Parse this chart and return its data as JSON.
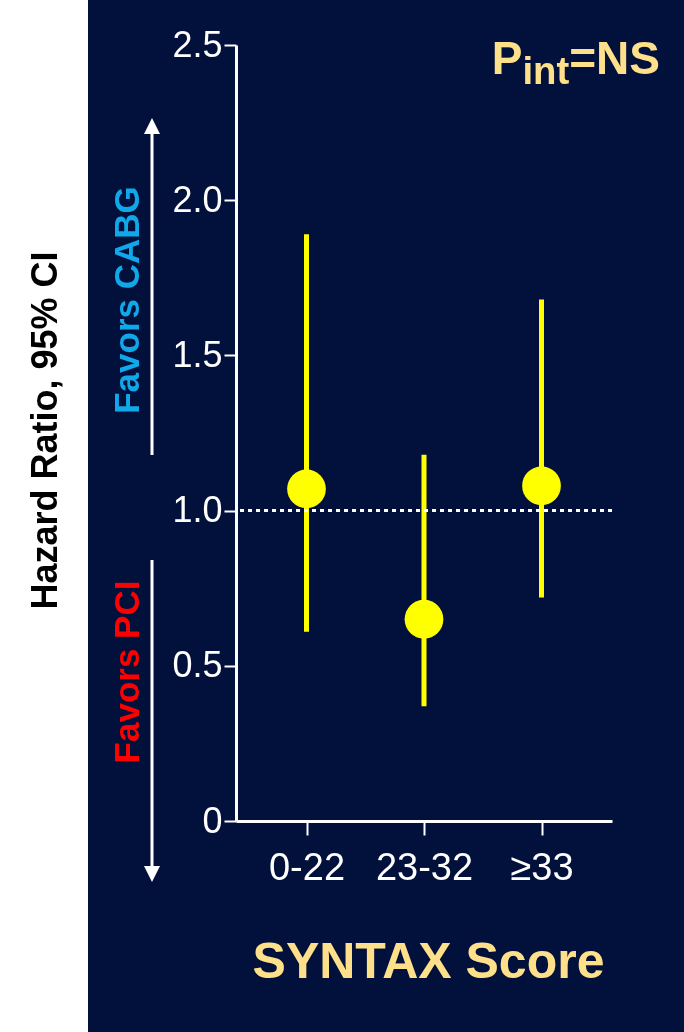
{
  "chart_data": {
    "type": "scatter",
    "xlabel": "SYNTAX Score",
    "ylabel": "Hazard Ratio, 95% CI",
    "categories": [
      "0-22",
      "23-32",
      "≥33"
    ],
    "series": [
      {
        "color": "#ffff00",
        "values": [
          1.07,
          0.65,
          1.08
        ],
        "errors": [
          [
            0.61,
            1.89
          ],
          [
            0.37,
            1.18
          ],
          [
            0.72,
            1.68
          ]
        ]
      }
    ],
    "ylim": [
      0,
      2.5
    ],
    "yticks": [
      0,
      0.5,
      {
        "value": 1,
        "label": "1.0"
      },
      1.5,
      {
        "value": 2,
        "label": "2.0"
      },
      2.5
    ],
    "ref_lines": [
      {
        "axis": "y",
        "value": 1,
        "color": "#ffffff",
        "line_style": "dotted"
      }
    ],
    "marker": "circle",
    "grid": false,
    "annotations": [
      "P$_{int}$=NS",
      "Favors CABG",
      "Favors PCI"
    ]
  }
}
